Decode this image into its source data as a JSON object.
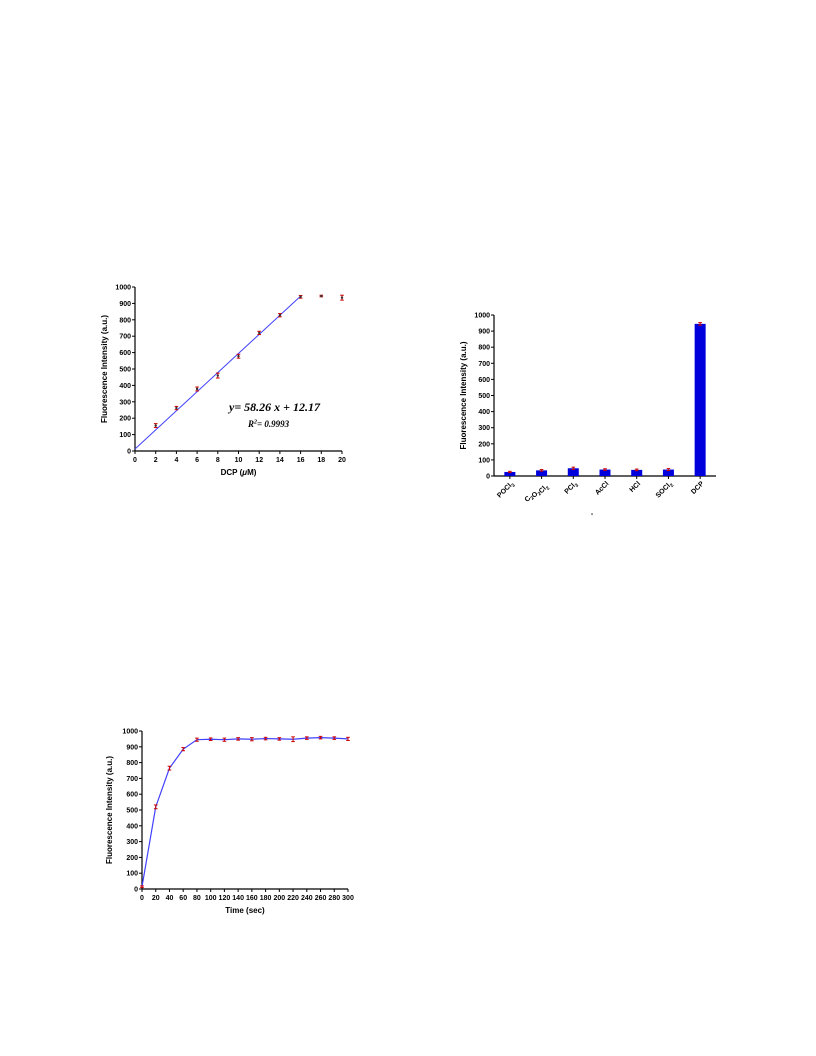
{
  "colors": {
    "line": "#4040ff",
    "error": "#cc0000",
    "bar": "#0000dd",
    "axis": "#000000"
  },
  "chart_data": [
    {
      "id": "calibration",
      "type": "scatter",
      "xlabel_main": "DCP (",
      "xlabel_mu": "μ",
      "xlabel_unit": "M)",
      "ylabel": "Fluorescence Intensity (a.u.)",
      "xlim": [
        0,
        20
      ],
      "ylim": [
        0,
        1000
      ],
      "xticks": [
        0,
        2,
        4,
        6,
        8,
        10,
        12,
        14,
        16,
        18,
        20
      ],
      "yticks": [
        0,
        100,
        200,
        300,
        400,
        500,
        600,
        700,
        800,
        900,
        1000
      ],
      "points": [
        {
          "x": 2,
          "y": 155,
          "err": 12
        },
        {
          "x": 4,
          "y": 262,
          "err": 10
        },
        {
          "x": 6,
          "y": 378,
          "err": 12
        },
        {
          "x": 8,
          "y": 460,
          "err": 15
        },
        {
          "x": 10,
          "y": 578,
          "err": 12
        },
        {
          "x": 12,
          "y": 720,
          "err": 10
        },
        {
          "x": 14,
          "y": 828,
          "err": 10
        },
        {
          "x": 16,
          "y": 940,
          "err": 8
        },
        {
          "x": 18,
          "y": 945,
          "err": 5
        },
        {
          "x": 20,
          "y": 935,
          "err": 15
        }
      ],
      "fit": {
        "x": [
          0,
          16
        ],
        "y": [
          12.17,
          944.33
        ]
      },
      "equation": "y= 58.26 x + 12.17",
      "r2_prefix": "R",
      "r2_sup": "2",
      "r2_value": "= 0.9993"
    },
    {
      "id": "selectivity",
      "type": "bar",
      "ylabel": "Fluorescence Intensity (a.u.)",
      "ylim": [
        0,
        1000
      ],
      "yticks": [
        0,
        100,
        200,
        300,
        400,
        500,
        600,
        700,
        800,
        900,
        1000
      ],
      "categories": [
        "POCl3",
        "C2O2Cl2",
        "PCl3",
        "AcCl",
        "HCl",
        "SOCl2",
        "DCP"
      ],
      "category_labels": [
        [
          {
            "t": "POCl"
          },
          {
            "t": "3",
            "sub": true
          }
        ],
        [
          {
            "t": "C"
          },
          {
            "t": "2",
            "sub": true
          },
          {
            "t": "O"
          },
          {
            "t": "2",
            "sub": true
          },
          {
            "t": "Cl"
          },
          {
            "t": "2",
            "sub": true
          }
        ],
        [
          {
            "t": "PCl"
          },
          {
            "t": "3",
            "sub": true
          }
        ],
        [
          {
            "t": "AcCl"
          }
        ],
        [
          {
            "t": "HCl"
          }
        ],
        [
          {
            "t": "SOCl"
          },
          {
            "t": "2",
            "sub": true
          }
        ],
        [
          {
            "t": "DCP"
          }
        ]
      ],
      "values": [
        25,
        35,
        48,
        40,
        38,
        40,
        945
      ],
      "errors": [
        4,
        5,
        7,
        5,
        5,
        6,
        8
      ],
      "xlabel": "-"
    },
    {
      "id": "time",
      "type": "line",
      "xlabel": "Time (sec)",
      "ylabel": "Fluorescence Intensity (a.u.)",
      "xlim": [
        0,
        300
      ],
      "ylim": [
        0,
        1000
      ],
      "xticks": [
        0,
        20,
        40,
        60,
        80,
        100,
        120,
        140,
        160,
        180,
        200,
        220,
        240,
        260,
        280,
        300
      ],
      "yticks": [
        0,
        100,
        200,
        300,
        400,
        500,
        600,
        700,
        800,
        900,
        1000
      ],
      "x": [
        0,
        20,
        40,
        60,
        80,
        100,
        120,
        140,
        160,
        180,
        200,
        220,
        240,
        260,
        280,
        300
      ],
      "y": [
        15,
        520,
        765,
        885,
        945,
        948,
        945,
        950,
        948,
        952,
        950,
        948,
        955,
        958,
        955,
        950
      ],
      "err": [
        5,
        12,
        12,
        10,
        10,
        8,
        10,
        8,
        10,
        8,
        8,
        15,
        8,
        8,
        8,
        10
      ]
    }
  ]
}
